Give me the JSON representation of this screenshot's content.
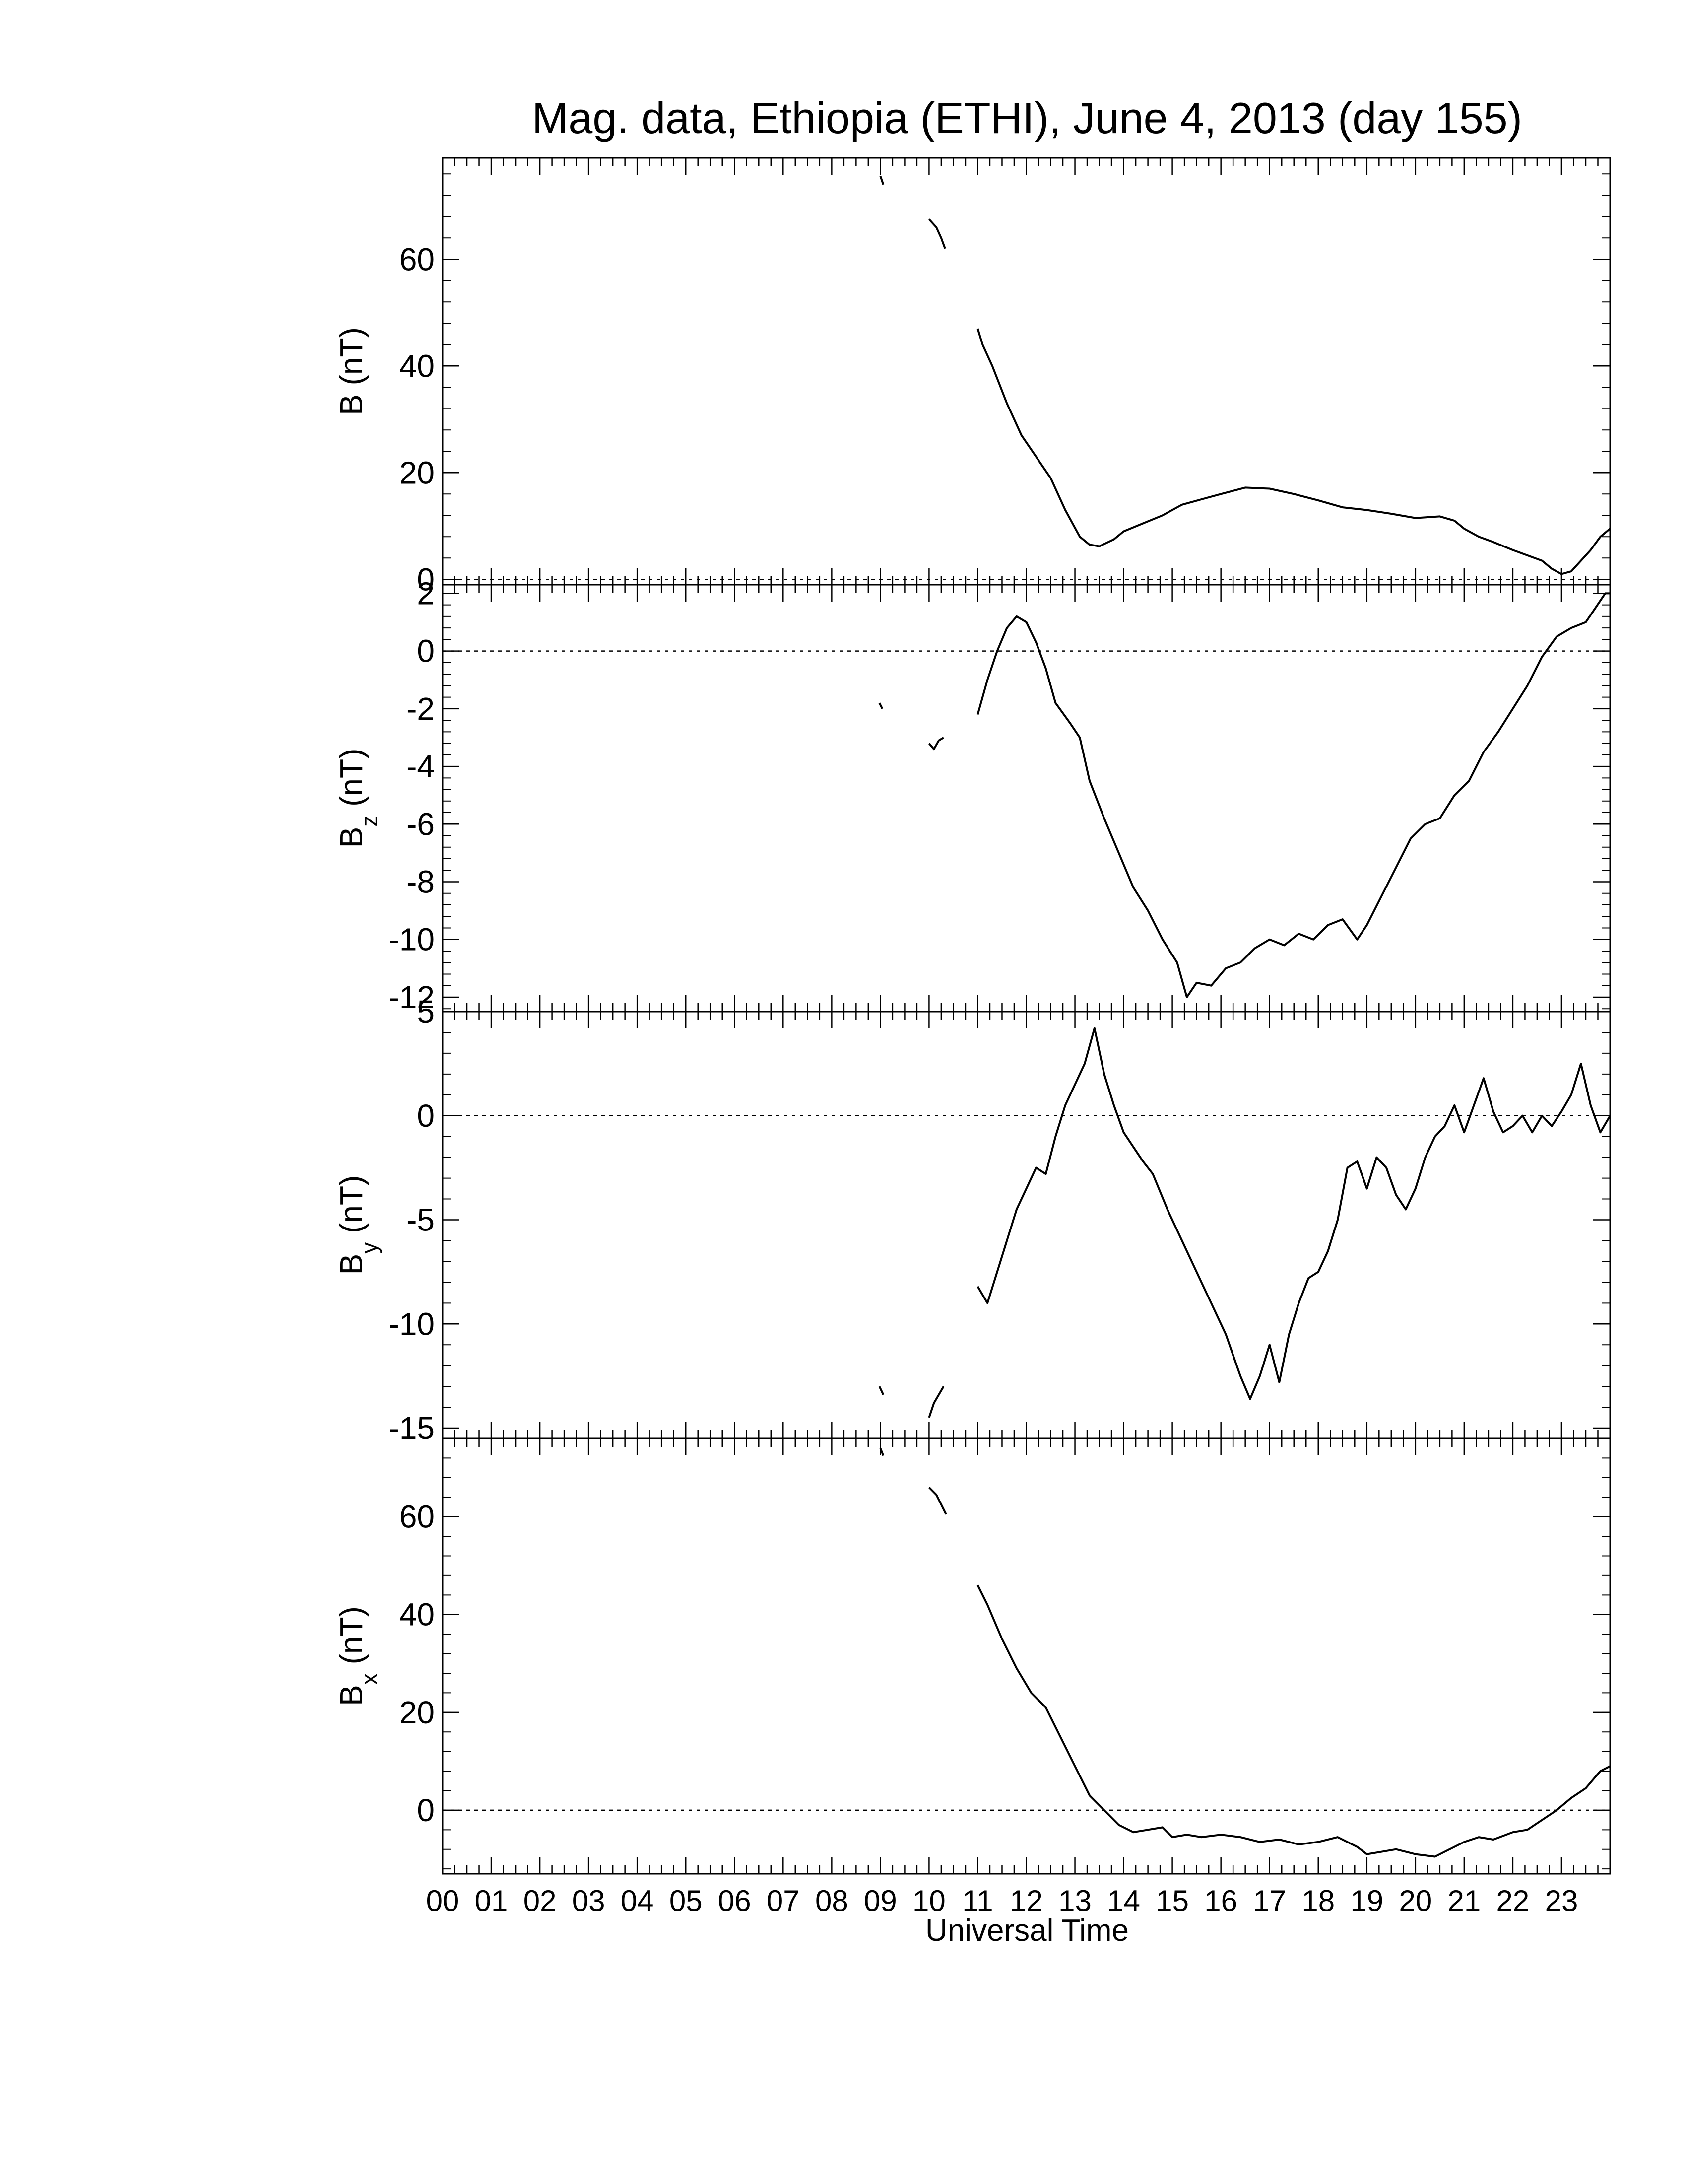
{
  "title": "Mag. data, Ethiopia (ETHI), June 4, 2013 (day 155)",
  "x_axis": {
    "label": "Universal Time",
    "tick_labels": [
      "00",
      "01",
      "02",
      "03",
      "04",
      "05",
      "06",
      "07",
      "08",
      "09",
      "10",
      "11",
      "12",
      "13",
      "14",
      "15",
      "16",
      "17",
      "18",
      "19",
      "20",
      "21",
      "22",
      "23"
    ]
  },
  "colors": {
    "line": "#000000",
    "zero_line": "#000000",
    "background": "#ffffff"
  },
  "chart_data": [
    {
      "type": "line",
      "panel": "B",
      "ylabel": "B (nT)",
      "ylabel_main": "B",
      "ylabel_sub": "",
      "ylabel_unit": "(nT)",
      "xlim": [
        0,
        24
      ],
      "ylim": [
        -1,
        79
      ],
      "yticks": [
        0,
        20,
        40,
        60
      ],
      "ytick_labels": [
        "0",
        "20",
        "40",
        "60"
      ],
      "zero_line": true,
      "segments": [
        [
          [
            9.0,
            75.6
          ],
          [
            9.06,
            74.0
          ]
        ],
        [
          [
            10.0,
            67.5
          ],
          [
            10.15,
            66.0
          ],
          [
            10.25,
            64.0
          ],
          [
            10.33,
            62.0
          ]
        ],
        [
          [
            11.0,
            47.0
          ],
          [
            11.1,
            44.0
          ],
          [
            11.3,
            40.0
          ],
          [
            11.6,
            33.0
          ],
          [
            11.9,
            27.0
          ],
          [
            12.2,
            23.0
          ],
          [
            12.5,
            19.0
          ],
          [
            12.8,
            13.0
          ],
          [
            13.1,
            8.0
          ],
          [
            13.3,
            6.5
          ],
          [
            13.5,
            6.2
          ],
          [
            13.8,
            7.5
          ],
          [
            14.0,
            9.0
          ],
          [
            14.4,
            10.5
          ],
          [
            14.8,
            12.0
          ],
          [
            15.2,
            14.0
          ],
          [
            15.6,
            15.0
          ],
          [
            16.0,
            16.0
          ],
          [
            16.5,
            17.2
          ],
          [
            17.0,
            17.0
          ],
          [
            17.5,
            16.0
          ],
          [
            18.0,
            14.8
          ],
          [
            18.5,
            13.5
          ],
          [
            19.0,
            13.0
          ],
          [
            19.5,
            12.3
          ],
          [
            20.0,
            11.5
          ],
          [
            20.5,
            11.8
          ],
          [
            20.8,
            11.0
          ],
          [
            21.0,
            9.5
          ],
          [
            21.3,
            8.0
          ],
          [
            21.6,
            7.0
          ],
          [
            22.0,
            5.5
          ],
          [
            22.3,
            4.5
          ],
          [
            22.6,
            3.5
          ],
          [
            22.8,
            2.0
          ],
          [
            23.0,
            1.0
          ],
          [
            23.2,
            1.5
          ],
          [
            23.4,
            3.5
          ],
          [
            23.6,
            5.5
          ],
          [
            23.8,
            8.0
          ],
          [
            24.0,
            9.5
          ]
        ]
      ]
    },
    {
      "type": "line",
      "panel": "Bz",
      "ylabel": "Bz (nT)",
      "ylabel_main": "B",
      "ylabel_sub": "z",
      "ylabel_unit": "(nT)",
      "xlim": [
        0,
        24
      ],
      "ylim": [
        -12.5,
        2.3
      ],
      "yticks": [
        2,
        0,
        -2,
        -4,
        -6,
        -8,
        -10,
        -12
      ],
      "ytick_labels": [
        "2",
        "0",
        "-2",
        "-4",
        "-6",
        "-8",
        "-10",
        "-12"
      ],
      "zero_line": true,
      "segments": [
        [
          [
            8.98,
            -1.8
          ],
          [
            9.04,
            -2.0
          ]
        ],
        [
          [
            10.0,
            -3.2
          ],
          [
            10.1,
            -3.4
          ],
          [
            10.2,
            -3.1
          ],
          [
            10.3,
            -3.0
          ]
        ],
        [
          [
            11.0,
            -2.2
          ],
          [
            11.2,
            -1.0
          ],
          [
            11.4,
            0.0
          ],
          [
            11.6,
            0.8
          ],
          [
            11.8,
            1.2
          ],
          [
            12.0,
            1.0
          ],
          [
            12.2,
            0.3
          ],
          [
            12.4,
            -0.6
          ],
          [
            12.6,
            -1.8
          ],
          [
            12.9,
            -2.5
          ],
          [
            13.1,
            -3.0
          ],
          [
            13.3,
            -4.5
          ],
          [
            13.6,
            -5.8
          ],
          [
            13.9,
            -7.0
          ],
          [
            14.2,
            -8.2
          ],
          [
            14.5,
            -9.0
          ],
          [
            14.8,
            -10.0
          ],
          [
            15.1,
            -10.8
          ],
          [
            15.3,
            -12.0
          ],
          [
            15.5,
            -11.5
          ],
          [
            15.8,
            -11.6
          ],
          [
            16.1,
            -11.0
          ],
          [
            16.4,
            -10.8
          ],
          [
            16.7,
            -10.3
          ],
          [
            17.0,
            -10.0
          ],
          [
            17.3,
            -10.2
          ],
          [
            17.6,
            -9.8
          ],
          [
            17.9,
            -10.0
          ],
          [
            18.2,
            -9.5
          ],
          [
            18.5,
            -9.3
          ],
          [
            18.8,
            -10.0
          ],
          [
            19.0,
            -9.5
          ],
          [
            19.3,
            -8.5
          ],
          [
            19.6,
            -7.5
          ],
          [
            19.9,
            -6.5
          ],
          [
            20.2,
            -6.0
          ],
          [
            20.5,
            -5.8
          ],
          [
            20.8,
            -5.0
          ],
          [
            21.1,
            -4.5
          ],
          [
            21.4,
            -3.5
          ],
          [
            21.7,
            -2.8
          ],
          [
            22.0,
            -2.0
          ],
          [
            22.3,
            -1.2
          ],
          [
            22.6,
            -0.2
          ],
          [
            22.9,
            0.5
          ],
          [
            23.2,
            0.8
          ],
          [
            23.5,
            1.0
          ],
          [
            23.7,
            1.5
          ],
          [
            23.9,
            2.0
          ],
          [
            24.0,
            2.0
          ]
        ]
      ]
    },
    {
      "type": "line",
      "panel": "By",
      "ylabel": "By (nT)",
      "ylabel_main": "B",
      "ylabel_sub": "y",
      "ylabel_unit": "(nT)",
      "xlim": [
        0,
        24
      ],
      "ylim": [
        -15.5,
        5.0
      ],
      "yticks": [
        5,
        0,
        -5,
        -10,
        -15
      ],
      "ytick_labels": [
        "5",
        "0",
        "-5",
        "-10",
        "-15"
      ],
      "zero_line": true,
      "segments": [
        [
          [
            8.98,
            -13.0
          ],
          [
            9.06,
            -13.4
          ]
        ],
        [
          [
            10.0,
            -14.5
          ],
          [
            10.1,
            -13.8
          ],
          [
            10.2,
            -13.4
          ],
          [
            10.3,
            -13.0
          ]
        ],
        [
          [
            11.0,
            -8.2
          ],
          [
            11.2,
            -9.0
          ],
          [
            11.4,
            -7.5
          ],
          [
            11.6,
            -6.0
          ],
          [
            11.8,
            -4.5
          ],
          [
            12.0,
            -3.5
          ],
          [
            12.2,
            -2.5
          ],
          [
            12.4,
            -2.8
          ],
          [
            12.6,
            -1.0
          ],
          [
            12.8,
            0.5
          ],
          [
            13.0,
            1.5
          ],
          [
            13.2,
            2.5
          ],
          [
            13.4,
            4.2
          ],
          [
            13.6,
            2.0
          ],
          [
            13.8,
            0.5
          ],
          [
            14.0,
            -0.8
          ],
          [
            14.2,
            -1.5
          ],
          [
            14.4,
            -2.2
          ],
          [
            14.6,
            -2.8
          ],
          [
            14.9,
            -4.5
          ],
          [
            15.2,
            -6.0
          ],
          [
            15.5,
            -7.5
          ],
          [
            15.8,
            -9.0
          ],
          [
            16.1,
            -10.5
          ],
          [
            16.4,
            -12.5
          ],
          [
            16.6,
            -13.6
          ],
          [
            16.8,
            -12.5
          ],
          [
            17.0,
            -11.0
          ],
          [
            17.2,
            -12.8
          ],
          [
            17.4,
            -10.5
          ],
          [
            17.6,
            -9.0
          ],
          [
            17.8,
            -7.8
          ],
          [
            18.0,
            -7.5
          ],
          [
            18.2,
            -6.5
          ],
          [
            18.4,
            -5.0
          ],
          [
            18.6,
            -2.5
          ],
          [
            18.8,
            -2.2
          ],
          [
            19.0,
            -3.5
          ],
          [
            19.2,
            -2.0
          ],
          [
            19.4,
            -2.5
          ],
          [
            19.6,
            -3.8
          ],
          [
            19.8,
            -4.5
          ],
          [
            20.0,
            -3.5
          ],
          [
            20.2,
            -2.0
          ],
          [
            20.4,
            -1.0
          ],
          [
            20.6,
            -0.5
          ],
          [
            20.8,
            0.5
          ],
          [
            21.0,
            -0.8
          ],
          [
            21.2,
            0.5
          ],
          [
            21.4,
            1.8
          ],
          [
            21.6,
            0.2
          ],
          [
            21.8,
            -0.8
          ],
          [
            22.0,
            -0.5
          ],
          [
            22.2,
            0.0
          ],
          [
            22.4,
            -0.8
          ],
          [
            22.6,
            0.0
          ],
          [
            22.8,
            -0.5
          ],
          [
            23.0,
            0.2
          ],
          [
            23.2,
            1.0
          ],
          [
            23.4,
            2.5
          ],
          [
            23.6,
            0.5
          ],
          [
            23.8,
            -0.8
          ],
          [
            24.0,
            0.0
          ]
        ]
      ]
    },
    {
      "type": "line",
      "panel": "Bx",
      "ylabel": "Bx (nT)",
      "ylabel_main": "B",
      "ylabel_sub": "x",
      "ylabel_unit": "(nT)",
      "xlim": [
        0,
        24
      ],
      "ylim": [
        -13,
        76
      ],
      "yticks": [
        0,
        20,
        40,
        60
      ],
      "ytick_labels": [
        "0",
        "20",
        "40",
        "60"
      ],
      "zero_line": true,
      "segments": [
        [
          [
            9.0,
            74.0
          ],
          [
            9.06,
            72.5
          ]
        ],
        [
          [
            10.0,
            66.0
          ],
          [
            10.15,
            64.5
          ],
          [
            10.25,
            62.5
          ],
          [
            10.35,
            60.5
          ]
        ],
        [
          [
            11.0,
            46.0
          ],
          [
            11.2,
            42.0
          ],
          [
            11.5,
            35.0
          ],
          [
            11.8,
            29.0
          ],
          [
            12.1,
            24.0
          ],
          [
            12.4,
            21.0
          ],
          [
            12.7,
            15.0
          ],
          [
            13.0,
            9.0
          ],
          [
            13.3,
            3.0
          ],
          [
            13.6,
            0.0
          ],
          [
            13.9,
            -3.0
          ],
          [
            14.2,
            -4.5
          ],
          [
            14.5,
            -4.0
          ],
          [
            14.8,
            -3.5
          ],
          [
            15.0,
            -5.5
          ],
          [
            15.3,
            -5.0
          ],
          [
            15.6,
            -5.5
          ],
          [
            16.0,
            -5.0
          ],
          [
            16.4,
            -5.5
          ],
          [
            16.8,
            -6.5
          ],
          [
            17.2,
            -6.0
          ],
          [
            17.6,
            -7.0
          ],
          [
            18.0,
            -6.5
          ],
          [
            18.4,
            -5.5
          ],
          [
            18.8,
            -7.5
          ],
          [
            19.0,
            -9.0
          ],
          [
            19.3,
            -8.5
          ],
          [
            19.6,
            -8.0
          ],
          [
            20.0,
            -9.0
          ],
          [
            20.4,
            -9.5
          ],
          [
            20.7,
            -8.0
          ],
          [
            21.0,
            -6.5
          ],
          [
            21.3,
            -5.5
          ],
          [
            21.6,
            -6.0
          ],
          [
            22.0,
            -4.5
          ],
          [
            22.3,
            -4.0
          ],
          [
            22.6,
            -2.0
          ],
          [
            22.9,
            0.0
          ],
          [
            23.2,
            2.5
          ],
          [
            23.5,
            4.5
          ],
          [
            23.8,
            8.0
          ],
          [
            24.0,
            9.0
          ]
        ]
      ]
    }
  ]
}
